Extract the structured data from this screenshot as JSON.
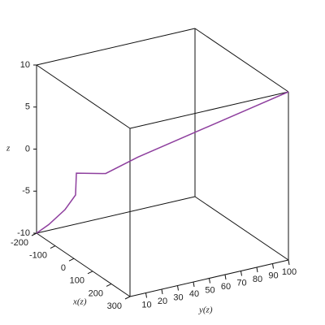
{
  "chart_data": {
    "type": "line3d",
    "xlabel": "x(z)",
    "ylabel": "y(z)",
    "zlabel": "z",
    "xlim": [
      -200,
      300
    ],
    "xticks": [
      -200,
      -100,
      0,
      100,
      200,
      300
    ],
    "ylim": [
      0,
      100
    ],
    "yticks": [
      10,
      20,
      30,
      40,
      50,
      60,
      70,
      80,
      90,
      100
    ],
    "zlim": [
      -10,
      10
    ],
    "zticks": [
      -10,
      -5,
      0,
      5,
      10
    ],
    "series": [
      {
        "color": "#8e3f9e",
        "x": [
          -200,
          -135,
          -102,
          -124.5,
          -153,
          -106,
          -40,
          300
        ],
        "y": [
          0,
          0,
          6.4,
          15.7,
          19.6,
          32.5,
          45,
          100
        ],
        "z": [
          -10,
          -8,
          -6,
          -5,
          -3,
          -2.9,
          -0.5,
          10
        ]
      }
    ]
  }
}
